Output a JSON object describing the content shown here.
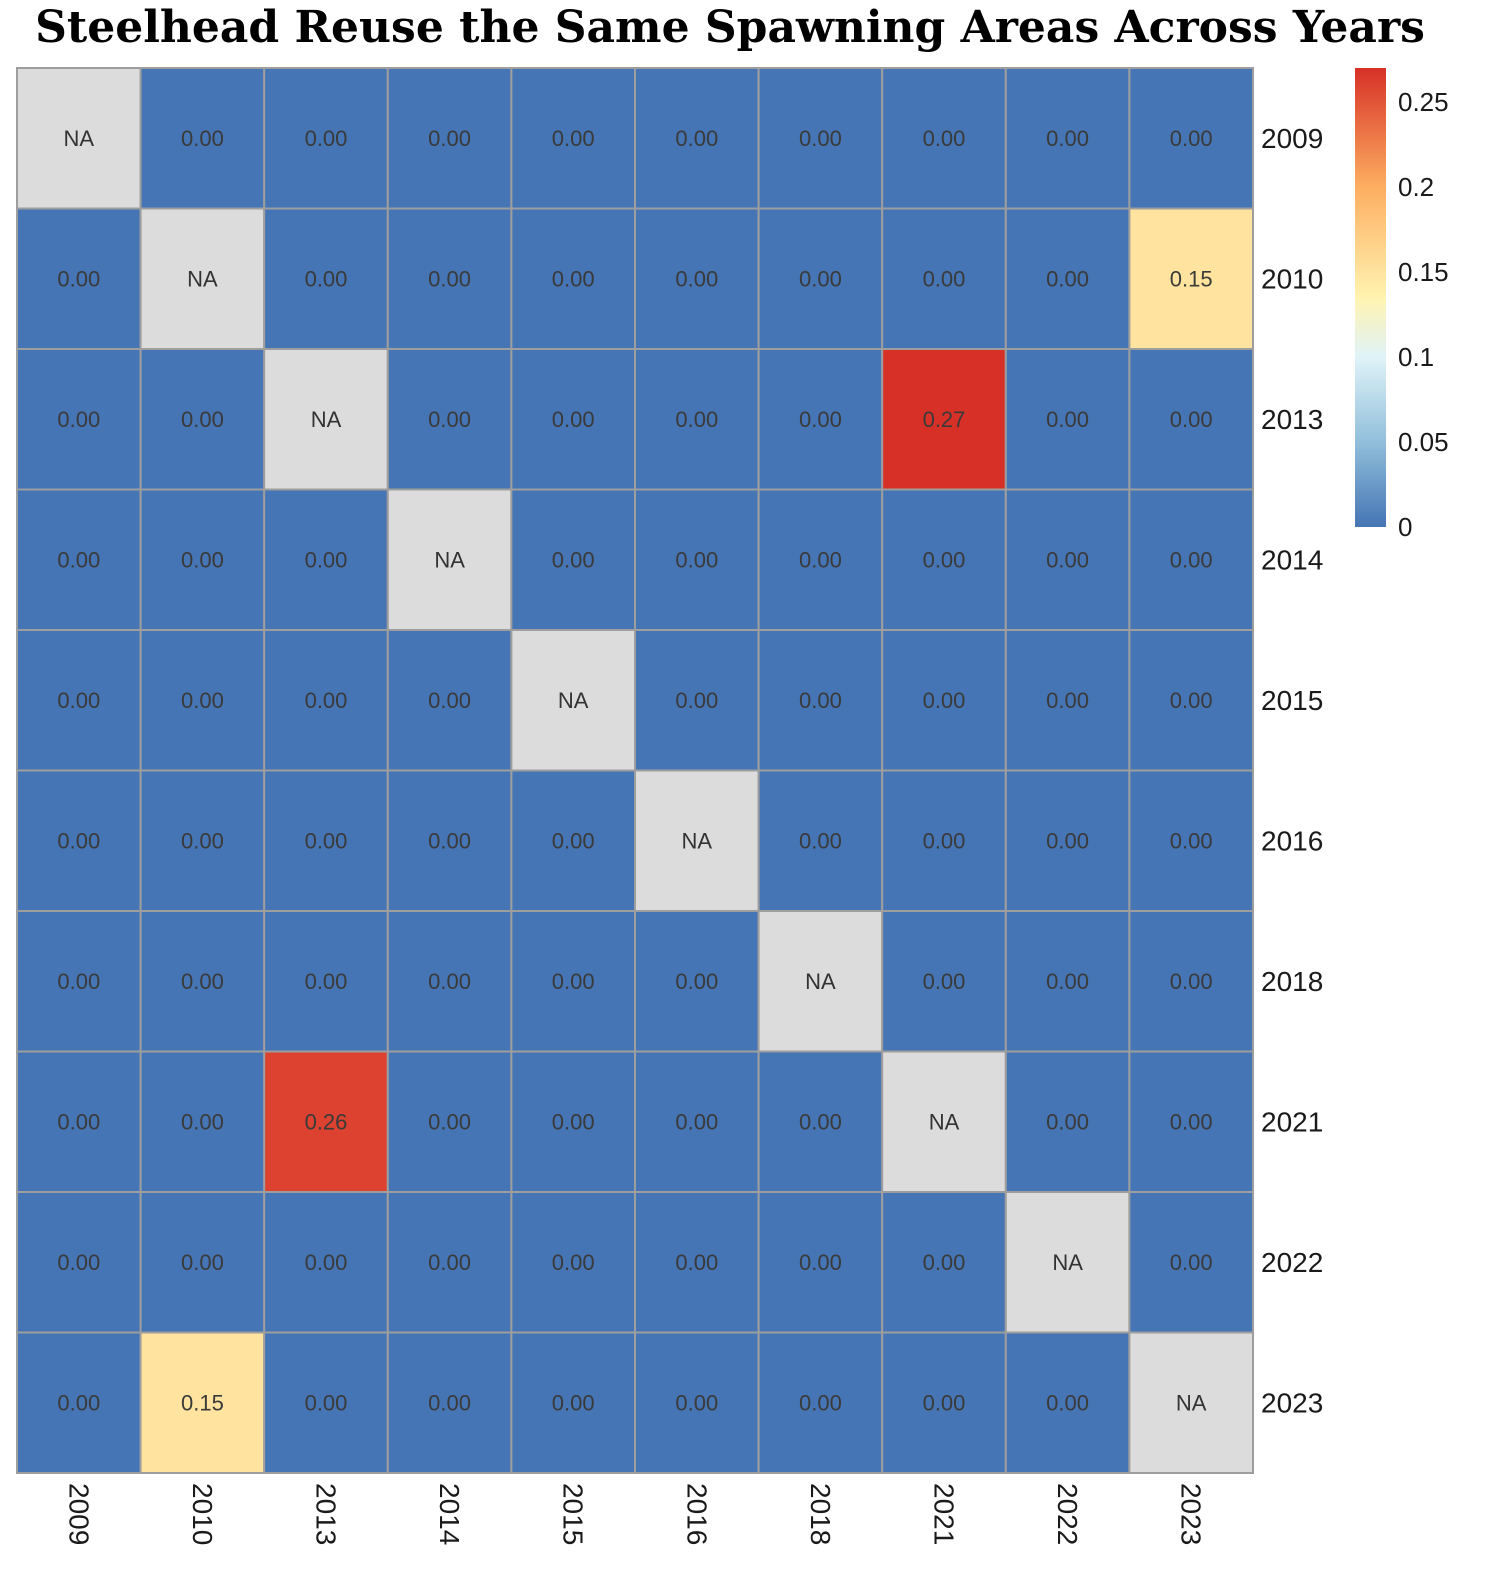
{
  "chart_data": {
    "type": "heatmap",
    "title": "Steelhead Reuse the Same Spawning Areas Across Years",
    "xlabel": "",
    "ylabel": "",
    "x_categories": [
      "2009",
      "2010",
      "2013",
      "2014",
      "2015",
      "2016",
      "2018",
      "2021",
      "2022",
      "2023"
    ],
    "y_categories": [
      "2009",
      "2010",
      "2013",
      "2014",
      "2015",
      "2016",
      "2018",
      "2021",
      "2022",
      "2023"
    ],
    "values": [
      [
        null,
        0.0,
        0.0,
        0.0,
        0.0,
        0.0,
        0.0,
        0.0,
        0.0,
        0.0
      ],
      [
        0.0,
        null,
        0.0,
        0.0,
        0.0,
        0.0,
        0.0,
        0.0,
        0.0,
        0.15
      ],
      [
        0.0,
        0.0,
        null,
        0.0,
        0.0,
        0.0,
        0.0,
        0.27,
        0.0,
        0.0
      ],
      [
        0.0,
        0.0,
        0.0,
        null,
        0.0,
        0.0,
        0.0,
        0.0,
        0.0,
        0.0
      ],
      [
        0.0,
        0.0,
        0.0,
        0.0,
        null,
        0.0,
        0.0,
        0.0,
        0.0,
        0.0
      ],
      [
        0.0,
        0.0,
        0.0,
        0.0,
        0.0,
        null,
        0.0,
        0.0,
        0.0,
        0.0
      ],
      [
        0.0,
        0.0,
        0.0,
        0.0,
        0.0,
        0.0,
        null,
        0.0,
        0.0,
        0.0
      ],
      [
        0.0,
        0.0,
        0.26,
        0.0,
        0.0,
        0.0,
        0.0,
        null,
        0.0,
        0.0
      ],
      [
        0.0,
        0.0,
        0.0,
        0.0,
        0.0,
        0.0,
        0.0,
        0.0,
        null,
        0.0
      ],
      [
        0.0,
        0.15,
        0.0,
        0.0,
        0.0,
        0.0,
        0.0,
        0.0,
        0.0,
        null
      ]
    ],
    "na_label": "NA",
    "value_format_decimals": 2,
    "color_scale": {
      "min": 0,
      "max": 0.27,
      "stops": [
        {
          "value": 0,
          "color": "#4575b4"
        },
        {
          "value": 0.05,
          "color": "#91bfdb"
        },
        {
          "value": 0.1,
          "color": "#e0f3f8"
        },
        {
          "value": 0.135,
          "color": "#fff3b0"
        },
        {
          "value": 0.2,
          "color": "#fdae61"
        },
        {
          "value": 0.27,
          "color": "#d73027"
        }
      ],
      "na_color": "#dcdcdc"
    },
    "legend": {
      "placement": "right",
      "ticks": [
        {
          "value": 0.25,
          "label": "0.25"
        },
        {
          "value": 0.2,
          "label": "0.2"
        },
        {
          "value": 0.15,
          "label": "0.15"
        },
        {
          "value": 0.1,
          "label": "0.1"
        },
        {
          "value": 0.05,
          "label": "0.05"
        },
        {
          "value": 0,
          "label": "0"
        }
      ]
    },
    "x_axis_position": "bottom",
    "x_tick_rotation": "vertical",
    "y_axis_position": "right",
    "grid_color": "#9e9e9e",
    "label_color_dark": "#3a3a3a",
    "label_color_na": "#333333"
  }
}
